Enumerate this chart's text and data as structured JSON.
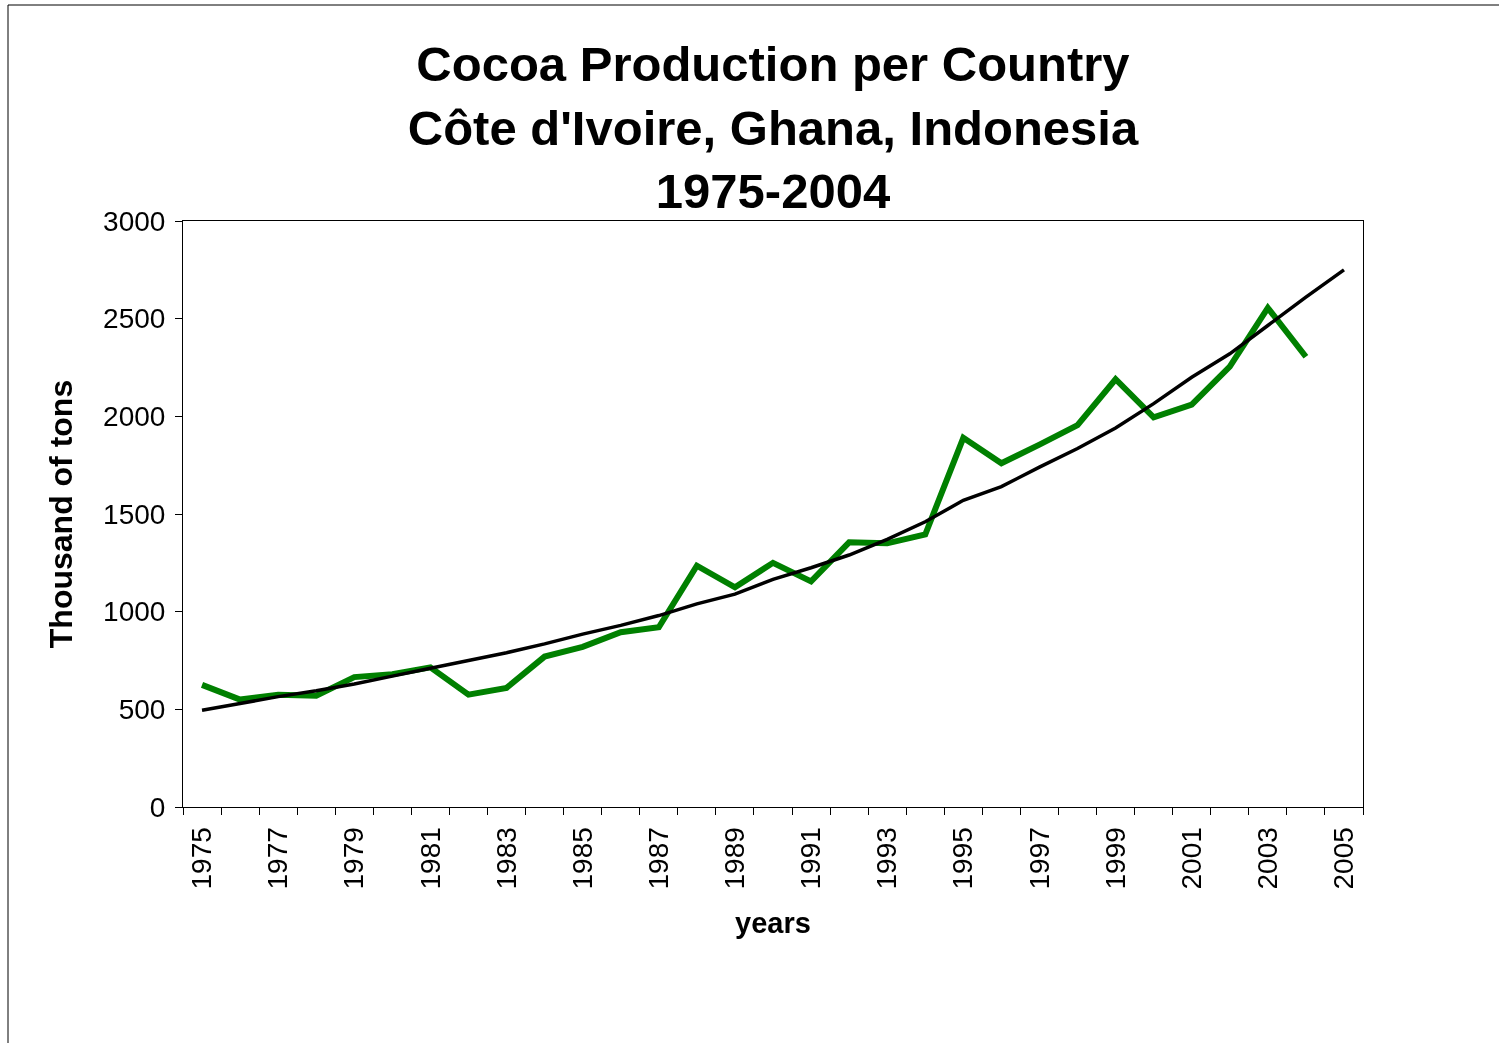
{
  "chart_data": {
    "type": "line",
    "title": "Cocoa Production per Country\nCôte d'Ivoire, Ghana, Indonesia\n1975-2004",
    "xlabel": "years",
    "ylabel": "Thousand of tons",
    "categories": [
      "1975",
      null,
      "1977",
      null,
      "1979",
      null,
      "1981",
      null,
      "1983",
      null,
      "1985",
      null,
      "1987",
      null,
      "1989",
      null,
      "1991",
      null,
      "1993",
      null,
      "1995",
      null,
      "1997",
      null,
      "1999",
      null,
      "2001",
      null,
      "2003",
      null,
      "2005"
    ],
    "series": [
      {
        "color": "#008000",
        "values": [
          625,
          550,
          575,
          570,
          665,
          680,
          715,
          575,
          610,
          770,
          820,
          895,
          920,
          1235,
          1125,
          1250,
          1155,
          1355,
          1350,
          1395,
          1890,
          1760,
          1855,
          1955,
          2190,
          1995,
          2060,
          2255,
          2555,
          2305,
          null
        ]
      },
      {
        "type": "line",
        "color": "#000000",
        "values": [
          495,
          530,
          565,
          595,
          630,
          670,
          710,
          750,
          790,
          835,
          885,
          930,
          980,
          1040,
          1090,
          1165,
          1225,
          1290,
          1370,
          1460,
          1570,
          1640,
          1740,
          1835,
          1940,
          2065,
          2200,
          2320,
          2465,
          2610,
          2750
        ]
      }
    ],
    "ylim": [
      0,
      3000
    ],
    "yticks": [
      0,
      500,
      1000,
      1500,
      2000,
      2500,
      3000
    ],
    "grid": false,
    "marker": "none",
    "line_style": "solid"
  }
}
